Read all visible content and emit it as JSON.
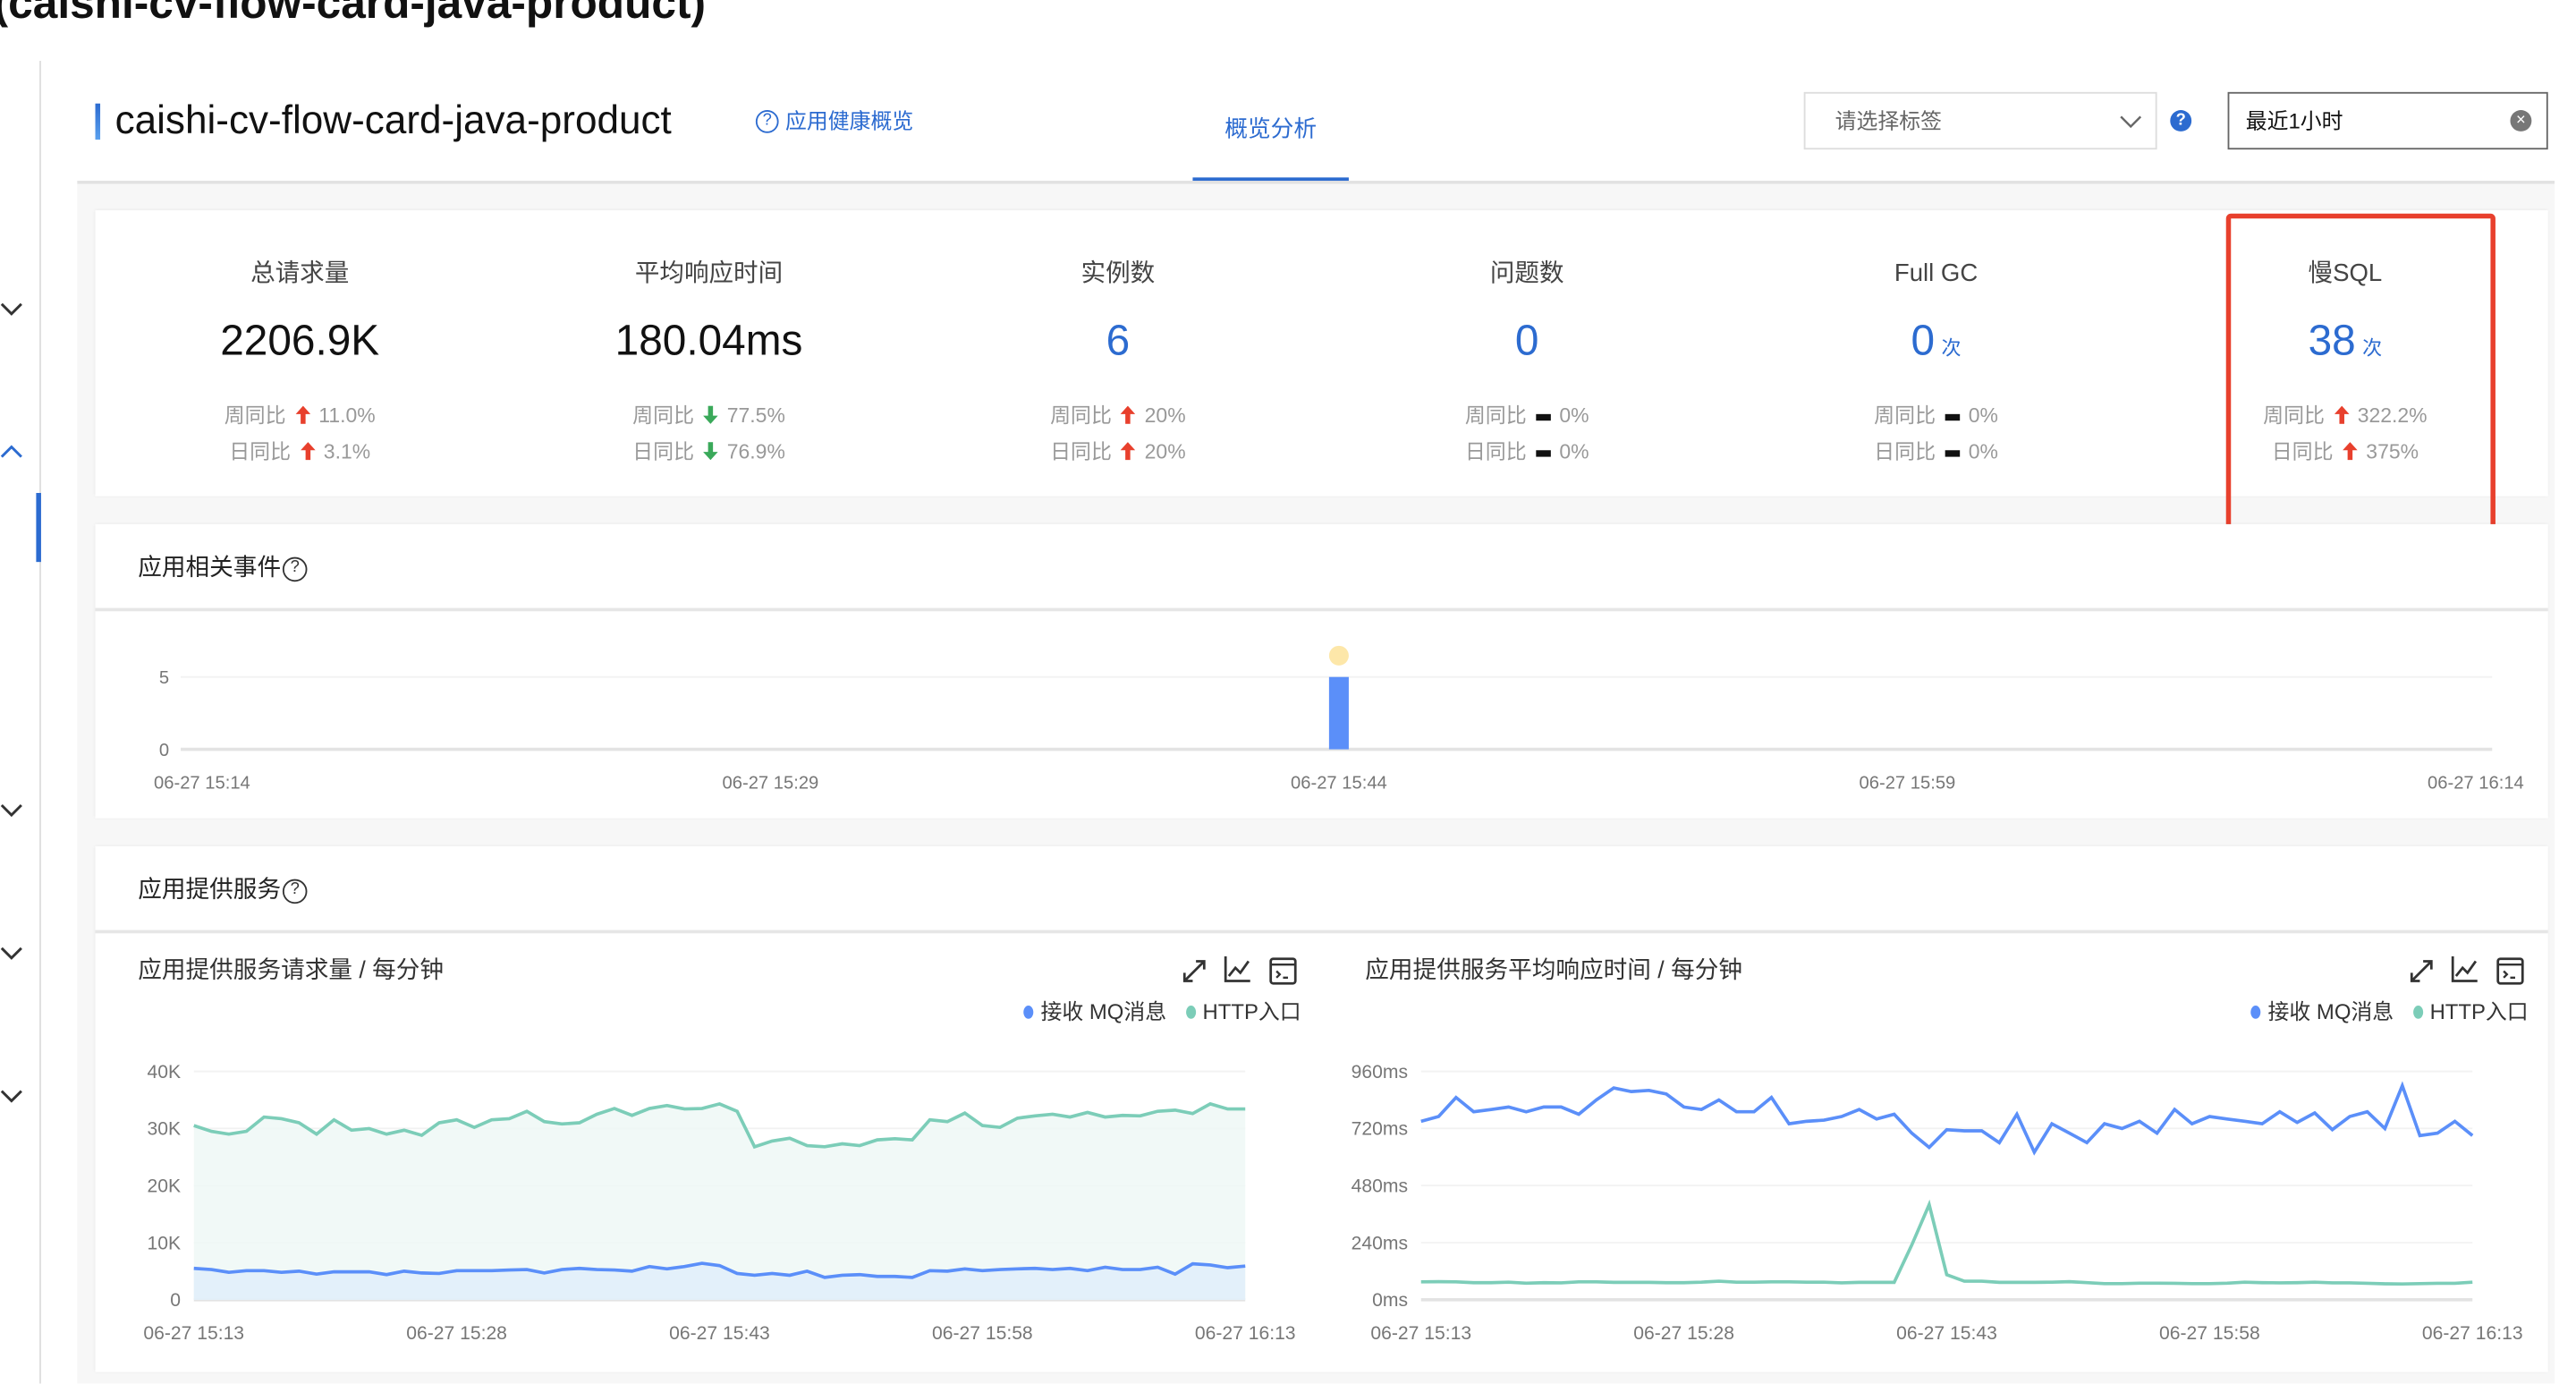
{
  "page": {
    "top_title": "(caishi-cv-flow-card-java-product)"
  },
  "header": {
    "app_name": "caishi-cv-flow-card-java-product",
    "health_link": "应用健康概览",
    "tab": "概览分析",
    "tag_select_placeholder": "请选择标签",
    "time_range": "最近1小时"
  },
  "metrics": [
    {
      "title": "总请求量",
      "value": "2206.9K",
      "unit": "",
      "blue": false,
      "week_label": "周同比",
      "week_dir": "up",
      "week": "11.0%",
      "day_label": "日同比",
      "day_dir": "up",
      "day": "3.1%"
    },
    {
      "title": "平均响应时间",
      "value": "180.04ms",
      "unit": "",
      "blue": false,
      "week_label": "周同比",
      "week_dir": "down",
      "week": "77.5%",
      "day_label": "日同比",
      "day_dir": "down",
      "day": "76.9%"
    },
    {
      "title": "实例数",
      "value": "6",
      "unit": "",
      "blue": true,
      "week_label": "周同比",
      "week_dir": "up",
      "week": "20%",
      "day_label": "日同比",
      "day_dir": "up",
      "day": "20%"
    },
    {
      "title": "问题数",
      "value": "0",
      "unit": "",
      "blue": true,
      "week_label": "周同比",
      "week_dir": "flat",
      "week": "0%",
      "day_label": "日同比",
      "day_dir": "flat",
      "day": "0%"
    },
    {
      "title": "Full GC",
      "value": "0",
      "unit": "次",
      "blue": true,
      "week_label": "周同比",
      "week_dir": "flat",
      "week": "0%",
      "day_label": "日同比",
      "day_dir": "flat",
      "day": "0%"
    },
    {
      "title": "慢SQL",
      "value": "38",
      "unit": "次",
      "blue": true,
      "week_label": "周同比",
      "week_dir": "up",
      "week": "322.2%",
      "day_label": "日同比",
      "day_dir": "up",
      "day": "375%"
    }
  ],
  "highlight_color": "#e8402d",
  "events": {
    "title": "应用相关事件"
  },
  "services": {
    "title": "应用提供服务"
  },
  "colors": {
    "accent": "#2c6bd0",
    "mq": "#5b8ff9",
    "http": "#7ccdb8",
    "event_dot": "#fde7a9"
  },
  "chart_data": [
    {
      "type": "bar",
      "title": "",
      "x_ticks": [
        "06-27 15:14",
        "06-27 15:29",
        "06-27 15:44",
        "06-27 15:59",
        "06-27 16:14"
      ],
      "y_ticks": [
        "0",
        "5"
      ],
      "ylim": [
        0,
        5
      ],
      "bars": [
        {
          "x": "06-27 15:44",
          "value": 5
        }
      ],
      "grid": true
    },
    {
      "type": "area",
      "title": "应用提供服务请求量 / 每分钟",
      "x_ticks": [
        "06-27 15:13",
        "06-27 15:28",
        "06-27 15:43",
        "06-27 15:58",
        "06-27 16:13"
      ],
      "y_ticks": [
        "0",
        "10K",
        "20K",
        "30K",
        "40K"
      ],
      "ylim": [
        0,
        40000
      ],
      "legend_position": "top-right",
      "series": [
        {
          "name": "接收 MQ消息",
          "values": [
            5500,
            5300,
            4800,
            5100,
            5100,
            4800,
            5000,
            4500,
            4900,
            4900,
            4900,
            4400,
            5000,
            4700,
            4600,
            5100,
            5100,
            5100,
            5200,
            5300,
            4700,
            5300,
            5500,
            5300,
            5200,
            5000,
            5800,
            5400,
            5800,
            6400,
            6000,
            4600,
            4300,
            4600,
            4300,
            5000,
            3900,
            4300,
            4400,
            4100,
            4100,
            3900,
            5100,
            5000,
            5400,
            5100,
            5300,
            5400,
            5500,
            5300,
            5500,
            5100,
            5700,
            5300,
            5300,
            5700,
            4500,
            6300,
            6100,
            5600,
            5900
          ]
        },
        {
          "name": "HTTP入口",
          "values": [
            30500,
            29500,
            29000,
            29500,
            32000,
            31700,
            31000,
            29000,
            31500,
            29700,
            30000,
            29000,
            29700,
            28800,
            31000,
            31500,
            30200,
            31500,
            31700,
            33000,
            31200,
            30800,
            31000,
            32500,
            33500,
            32300,
            33500,
            34000,
            33400,
            33500,
            34300,
            33000,
            26800,
            27800,
            28300,
            27000,
            26800,
            27300,
            27000,
            28000,
            28200,
            28000,
            31500,
            31200,
            32700,
            30500,
            30200,
            31800,
            32200,
            32500,
            32000,
            32800,
            32000,
            32300,
            32200,
            33000,
            33200,
            32600,
            34300,
            33400,
            33400
          ]
        }
      ]
    },
    {
      "type": "line",
      "title": "应用提供服务平均响应时间 / 每分钟",
      "x_ticks": [
        "06-27 15:13",
        "06-27 15:28",
        "06-27 15:43",
        "06-27 15:58",
        "06-27 16:13"
      ],
      "y_ticks": [
        "0ms",
        "240ms",
        "480ms",
        "720ms",
        "960ms"
      ],
      "ylim": [
        0,
        960
      ],
      "legend_position": "top-right",
      "series": [
        {
          "name": "接收 MQ消息",
          "values": [
            750,
            770,
            850,
            790,
            800,
            810,
            790,
            810,
            810,
            780,
            840,
            890,
            875,
            880,
            865,
            810,
            800,
            840,
            790,
            790,
            850,
            740,
            750,
            755,
            770,
            800,
            760,
            780,
            700,
            640,
            715,
            710,
            710,
            660,
            780,
            620,
            740,
            700,
            660,
            740,
            720,
            750,
            700,
            800,
            740,
            770,
            760,
            750,
            740,
            790,
            745,
            785,
            715,
            770,
            790,
            720,
            900,
            690,
            700,
            750,
            690
          ]
        },
        {
          "name": "HTTP入口",
          "values": [
            75,
            76,
            75,
            72,
            72,
            74,
            70,
            72,
            71,
            75,
            75,
            73,
            73,
            73,
            72,
            72,
            74,
            78,
            74,
            74,
            75,
            75,
            74,
            74,
            71,
            73,
            73,
            73,
            230,
            400,
            105,
            78,
            78,
            73,
            73,
            73,
            74,
            76,
            72,
            68,
            68,
            70,
            70,
            69,
            68,
            68,
            70,
            74,
            72,
            71,
            72,
            74,
            71,
            71,
            69,
            67,
            66,
            68,
            69,
            69,
            74
          ]
        }
      ]
    }
  ]
}
